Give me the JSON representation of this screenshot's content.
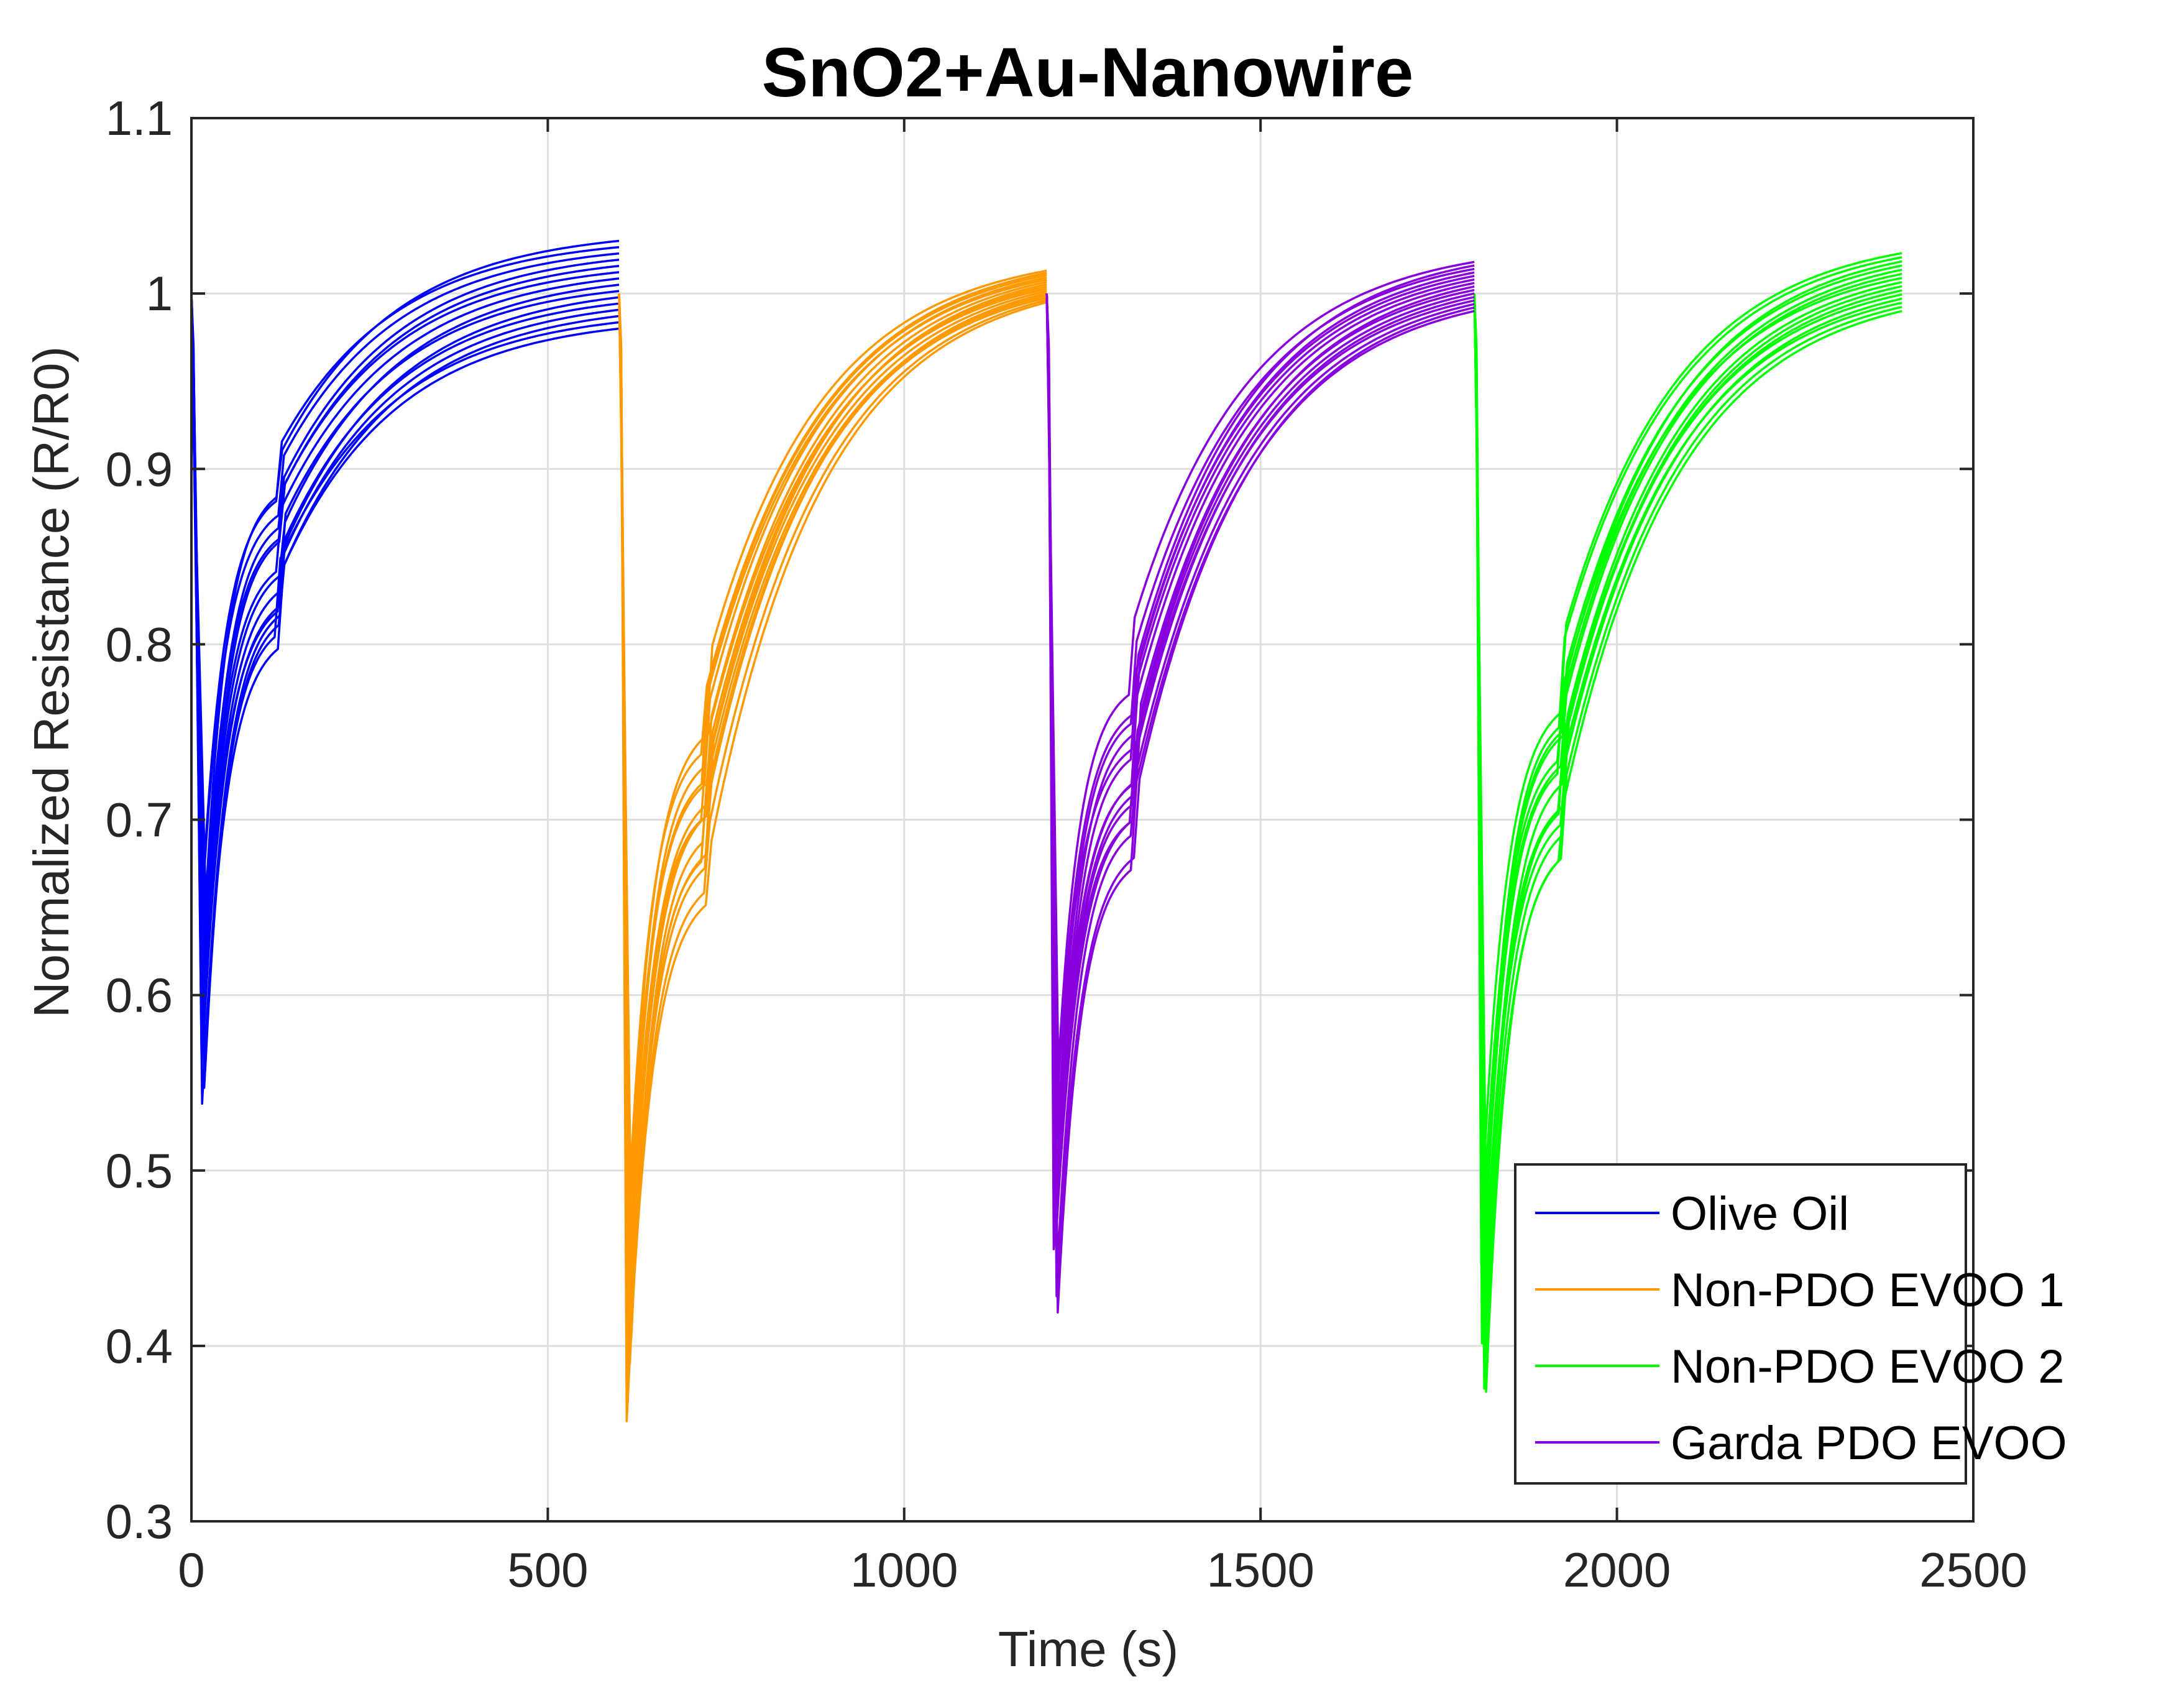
{
  "chart_data": {
    "type": "line",
    "title": "SnO2+Au-Nanowire",
    "xlabel": "Time (s)",
    "ylabel": "Normalized Resistance (R/R0)",
    "xlim": [
      0,
      2500
    ],
    "ylim": [
      0.3,
      1.1
    ],
    "xticks": [
      0,
      500,
      1000,
      1500,
      2000,
      2500
    ],
    "xtick_labels": [
      "0",
      "500",
      "1000",
      "1500",
      "2000",
      "2500"
    ],
    "yticks": [
      0.3,
      0.4,
      0.5,
      0.6,
      0.7,
      0.8,
      0.9,
      1.0,
      1.1
    ],
    "ytick_labels": [
      "0.3",
      "0.4",
      "0.5",
      "0.6",
      "0.7",
      "0.8",
      "0.9",
      "1",
      "1.1"
    ],
    "grid": true,
    "legend_position": "bottom-right",
    "curves_per_series": 15,
    "series": [
      {
        "name": "Olive Oil",
        "color": "#0000ff",
        "start_time": 0,
        "end_time": 600,
        "min_time": 15,
        "min_value": 0.535,
        "knee_time": 120,
        "knee_value": 0.84,
        "final_value_range": [
          0.98,
          1.03
        ]
      },
      {
        "name": "Non-PDO EVOO 1",
        "color": "#ff9900",
        "start_time": 600,
        "end_time": 1200,
        "min_time": 612,
        "min_value": 0.362,
        "knee_time": 720,
        "knee_value": 0.7,
        "final_value_range": [
          0.995,
          1.013
        ]
      },
      {
        "name": "Non-PDO EVOO 2",
        "color": "#00ff00",
        "start_time": 1800,
        "end_time": 2400,
        "min_time": 1812,
        "min_value": 0.372,
        "knee_time": 1920,
        "knee_value": 0.72,
        "final_value_range": [
          0.99,
          1.023
        ]
      },
      {
        "name": "Garda PDO EVOO",
        "color": "#8800dd",
        "start_time": 1200,
        "end_time": 1800,
        "min_time": 1212,
        "min_value": 0.424,
        "knee_time": 1320,
        "knee_value": 0.72,
        "final_value_range": [
          0.99,
          1.018
        ]
      }
    ],
    "legend_order": [
      "Olive Oil",
      "Non-PDO EVOO 1",
      "Non-PDO EVOO 2",
      "Garda PDO EVOO"
    ]
  }
}
